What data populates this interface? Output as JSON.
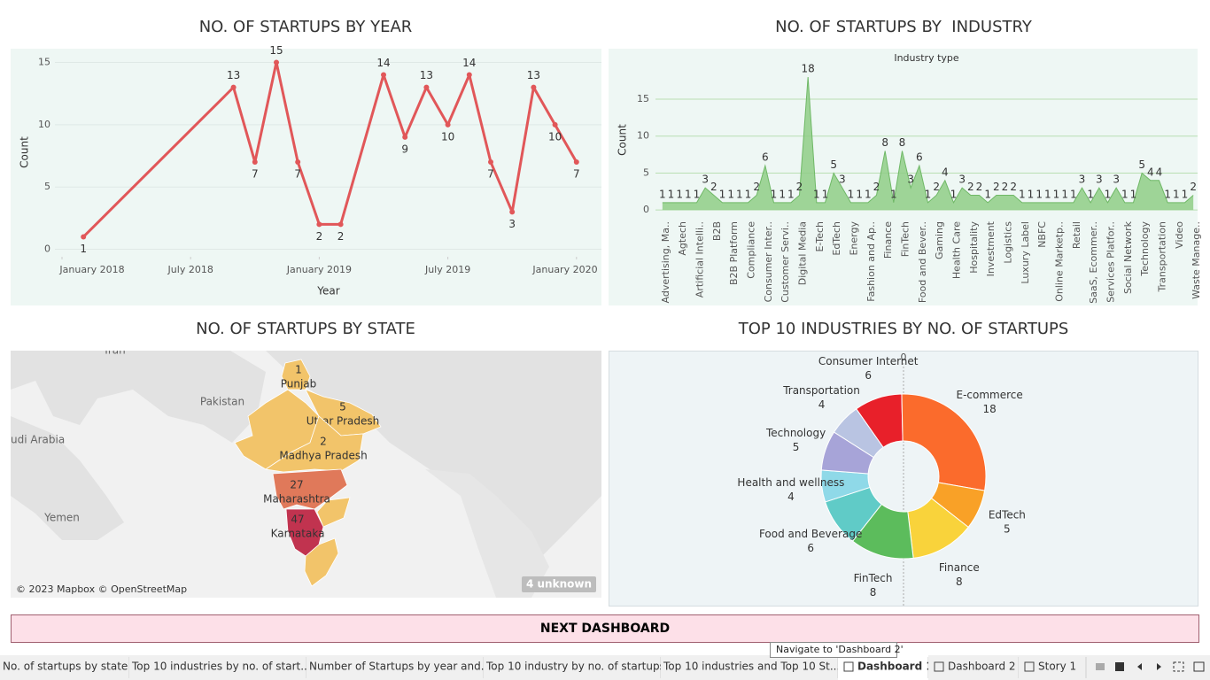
{
  "chart_data": [
    {
      "type": "line",
      "title": "NO. OF STARTUPS BY YEAR",
      "x_label": "Year",
      "y_label": "Count",
      "x": [
        "2018-02",
        "2018-09",
        "2018-10",
        "2018-11",
        "2018-12",
        "2019-01",
        "2019-02",
        "2019-04",
        "2019-05",
        "2019-06",
        "2019-07",
        "2019-08",
        "2019-09",
        "2019-10",
        "2019-11",
        "2019-12",
        "2020-01"
      ],
      "values": [
        1,
        13,
        7,
        15,
        7,
        2,
        2,
        14,
        9,
        13,
        10,
        14,
        7,
        3,
        13,
        10,
        7
      ],
      "color": "#e15759",
      "xlim": [
        "2017-11",
        "2020-02"
      ],
      "xticks": [
        {
          "value": "2018-01",
          "label": "January 2018"
        },
        {
          "value": "2018-07",
          "label": "July 2018"
        },
        {
          "value": "2019-01",
          "label": "January 2019"
        },
        {
          "value": "2019-07",
          "label": "July 2019"
        },
        {
          "value": "2020-01",
          "label": "January 2020"
        }
      ],
      "ylim": [
        -0.6,
        16.1
      ],
      "yticks": [
        0,
        5,
        10,
        15
      ],
      "grid": true
    },
    {
      "type": "area",
      "title": "NO. OF STARTUPS BY  INDUSTRY",
      "subtitle": "Industry type",
      "y_label": "Count",
      "categories": [
        "Advertising, Ma..",
        null,
        "Agtech",
        null,
        "Artificial Intelli..",
        null,
        "B2B",
        null,
        "B2B Platform",
        null,
        "Compliance",
        null,
        "Consumer Inter..",
        null,
        "Customer Servi..",
        null,
        "Digital Media",
        null,
        "E-Tech",
        null,
        "EdTech",
        null,
        "Energy",
        null,
        "Fashion and Ap..",
        null,
        "Finance",
        null,
        "FinTech",
        null,
        "Food and Bever..",
        null,
        "Gaming",
        null,
        "Health Care",
        null,
        "Hospitality",
        null,
        "Investment",
        null,
        "Logistics",
        null,
        "Luxury Label",
        null,
        "NBFC",
        null,
        "Online Marketp..",
        null,
        "Retail",
        null,
        "SaaS, Ecommer..",
        null,
        "Services Platfor..",
        null,
        "Social Network",
        null,
        "Technology",
        null,
        "Transportation",
        null,
        "Video",
        null,
        "Waste Manage.."
      ],
      "values": [
        1,
        1,
        1,
        1,
        1,
        3,
        2,
        1,
        1,
        1,
        1,
        2,
        6,
        1,
        1,
        1,
        2,
        18,
        1,
        1,
        5,
        3,
        1,
        1,
        1,
        2,
        8,
        1,
        8,
        3,
        6,
        1,
        2,
        4,
        1,
        3,
        2,
        2,
        1,
        2,
        2,
        2,
        1,
        1,
        1,
        1,
        1,
        1,
        1,
        3,
        1,
        3,
        1,
        3,
        1,
        1,
        5,
        4,
        4,
        1,
        1,
        1,
        2
      ],
      "color": "#8fce86",
      "ylim": [
        -0.7,
        19.2
      ],
      "yticks": [
        0,
        5,
        10,
        15
      ],
      "grid": true
    },
    {
      "type": "pie",
      "title": "TOP 10 INDUSTRIES BY NO. OF STARTUPS",
      "axis_label": "0",
      "categories": [
        "Consumer Internet",
        "E-commerce",
        "EdTech",
        "Finance",
        "FinTech",
        "Food and Beverage",
        "Health and wellness",
        "Technology",
        "Transportation"
      ],
      "values": [
        6,
        18,
        5,
        8,
        8,
        6,
        4,
        5,
        4
      ],
      "colors": [
        "#e8202a",
        "#fb6b2c",
        "#f9a127",
        "#f9d33b",
        "#5cbc5c",
        "#60cbc7",
        "#8fd9e8",
        "#a7a4d8",
        "#b9c4e2"
      ]
    }
  ],
  "map": {
    "title": "NO. OF STARTUPS BY STATE",
    "states": [
      {
        "name": "Punjab",
        "value": 1
      },
      {
        "name": "Uttar Pradesh",
        "value": 5
      },
      {
        "name": "Madhya Pradesh",
        "value": 2
      },
      {
        "name": "Maharashtra",
        "value": 27
      },
      {
        "name": "Karnataka",
        "value": 47
      }
    ],
    "places": [
      "Iran",
      "Pakistan",
      "udi Arabia",
      "Yemen"
    ],
    "attribution": "© 2023 Mapbox © OpenStreetMap",
    "unknown": "4 unknown"
  },
  "button": "NEXT DASHBOARD",
  "tooltip": "Navigate to 'Dashboard 2'",
  "tabs": [
    "No. of startups by state",
    "Top 10 industries by no. of start...",
    "Number of Startups by year and...",
    "Top 10 industry by no. of startups",
    "Top 10 industries and Top 10 St...",
    "Dashboard 1",
    "Dashboard 2",
    "Story 1"
  ]
}
